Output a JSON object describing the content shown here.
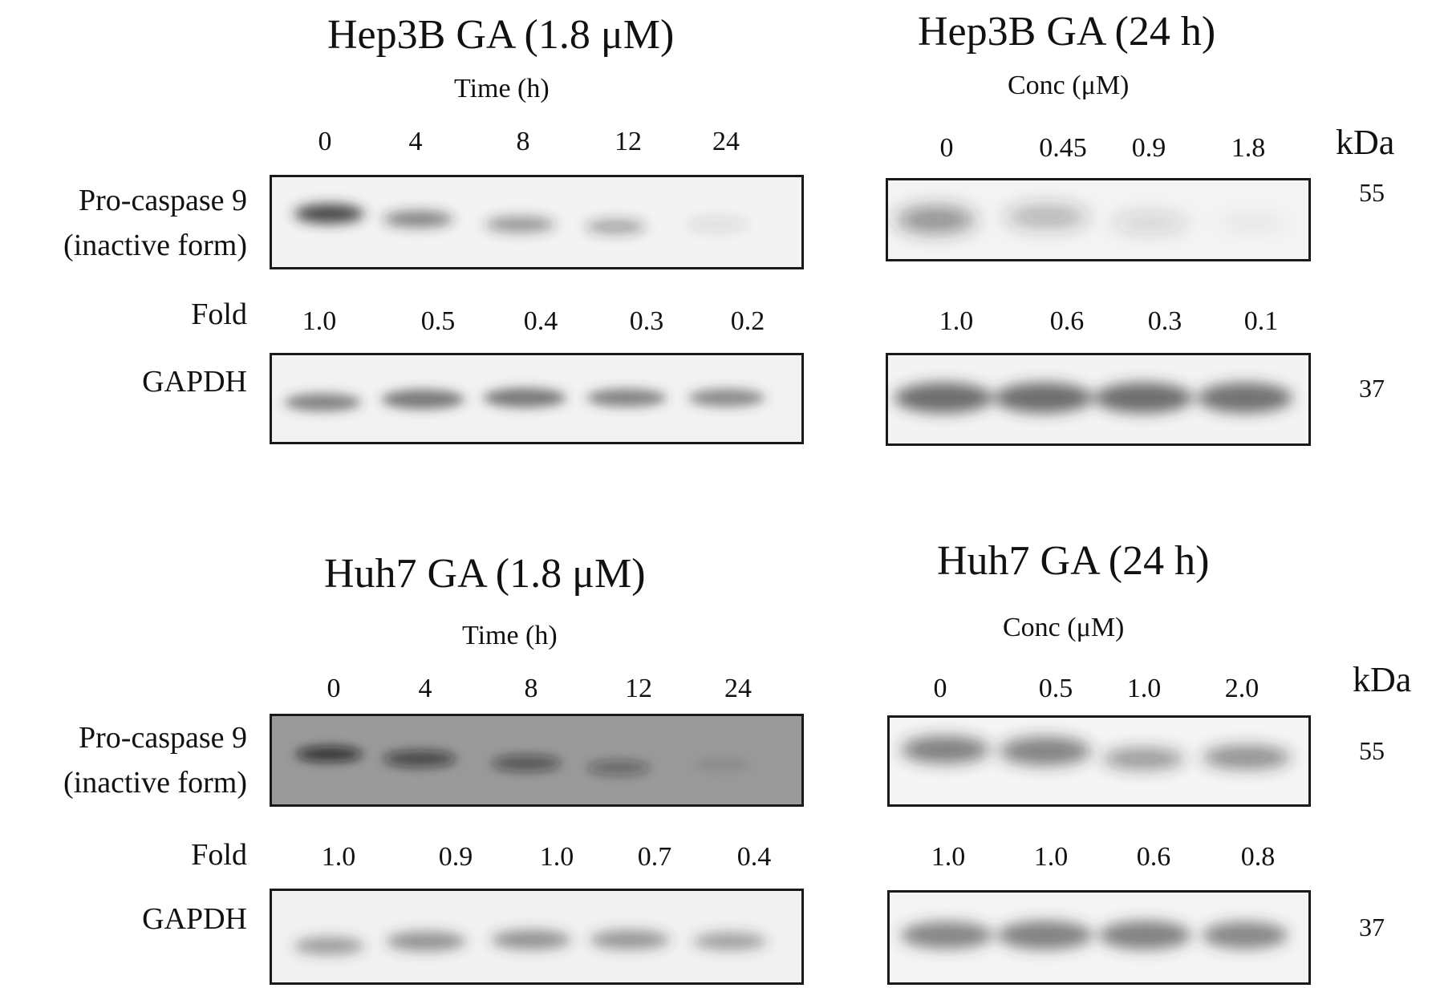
{
  "panels": [
    {
      "id": "hep3b-time",
      "title": "Hep3B GA (1.8 μM)",
      "axis_label": "Time (h)",
      "lanes": [
        "0",
        "4",
        "8",
        "12",
        "24"
      ],
      "target_label_line1": "Pro-caspase 9",
      "target_label_line2": "(inactive form)",
      "fold_label": "Fold",
      "folds": [
        "1.0",
        "0.5",
        "0.4",
        "0.3",
        "0.2"
      ],
      "loading_label": "GAPDH",
      "target_fold_values": [
        1.0,
        0.5,
        0.4,
        0.3,
        0.2
      ]
    },
    {
      "id": "hep3b-conc",
      "title": "Hep3B GA (24 h)",
      "axis_label": "Conc (μM)",
      "lanes": [
        "0",
        "0.45",
        "0.9",
        "1.8"
      ],
      "folds": [
        "1.0",
        "0.6",
        "0.3",
        "0.1"
      ],
      "kda_label": "kDa",
      "mw_target": "55",
      "mw_loading": "37",
      "target_fold_values": [
        1.0,
        0.6,
        0.3,
        0.1
      ]
    },
    {
      "id": "huh7-time",
      "title": "Huh7 GA (1.8 μM)",
      "axis_label": "Time (h)",
      "lanes": [
        "0",
        "4",
        "8",
        "12",
        "24"
      ],
      "target_label_line1": "Pro-caspase 9",
      "target_label_line2": "(inactive form)",
      "fold_label": "Fold",
      "folds": [
        "1.0",
        "0.9",
        "1.0",
        "0.7",
        "0.4"
      ],
      "loading_label": "GAPDH",
      "target_fold_values": [
        1.0,
        0.9,
        1.0,
        0.7,
        0.4
      ]
    },
    {
      "id": "huh7-conc",
      "title": "Huh7 GA (24 h)",
      "axis_label": "Conc (μM)",
      "lanes": [
        "0",
        "0.5",
        "1.0",
        "2.0"
      ],
      "folds": [
        "1.0",
        "1.0",
        "0.6",
        "0.8"
      ],
      "kda_label": "kDa",
      "mw_target": "55",
      "mw_loading": "37",
      "target_fold_values": [
        1.0,
        1.0,
        0.6,
        0.8
      ]
    }
  ]
}
